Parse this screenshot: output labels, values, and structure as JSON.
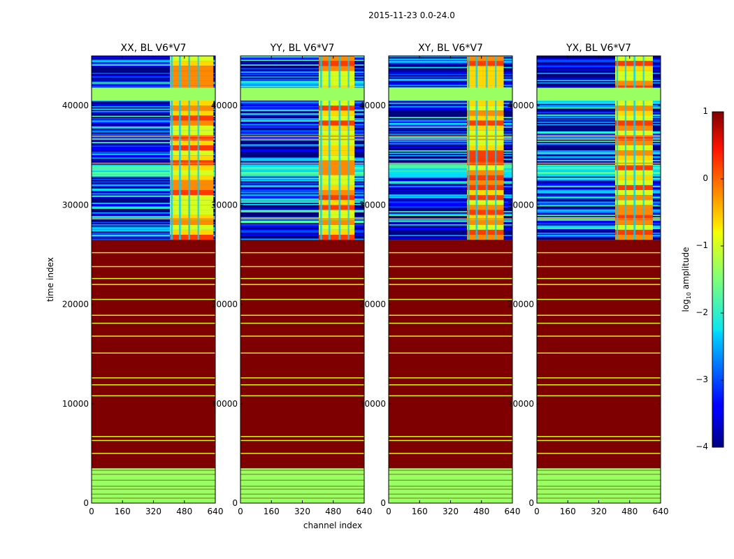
{
  "chart_data": {
    "type": "heatmap",
    "suptitle": "2015-11-23 0.0-24.0",
    "xlabel": "channel index",
    "ylabel": "time index",
    "xlim": [
      0,
      640
    ],
    "ylim": [
      0,
      45000
    ],
    "xticks": [
      "0",
      "160",
      "320",
      "480",
      "640"
    ],
    "yticks": [
      "0",
      "10000",
      "20000",
      "30000",
      "40000"
    ],
    "xtick_values": [
      0,
      160,
      320,
      480,
      640
    ],
    "ytick_values": [
      0,
      10000,
      20000,
      30000,
      40000
    ],
    "colormap": "jet",
    "panels": [
      {
        "title": "XX, BL V6*V7",
        "rfi_channel_ranges": [
          [
            405,
            630
          ]
        ],
        "rfi_channel_stripes": [
          [
            410,
            420
          ],
          [
            452,
            462
          ],
          [
            500,
            510
          ],
          [
            548,
            556
          ]
        ],
        "saturated_time_range": [
          3500,
          26500
        ],
        "flagged_block_time_range": [
          40500,
          41800
        ],
        "data_time_range": [
          26500,
          45000
        ]
      },
      {
        "title": "YY, BL V6*V7",
        "rfi_channel_ranges": [
          [
            405,
            590
          ]
        ],
        "rfi_channel_stripes": [
          [
            412,
            422
          ],
          [
            455,
            465
          ],
          [
            508,
            518
          ],
          [
            555,
            563
          ]
        ],
        "saturated_time_range": [
          3500,
          26500
        ],
        "flagged_block_time_range": [
          40500,
          41800
        ],
        "data_time_range": [
          26500,
          45000
        ]
      },
      {
        "title": "XY, BL V6*V7",
        "rfi_channel_ranges": [
          [
            405,
            595
          ]
        ],
        "rfi_channel_stripes": [
          [
            408,
            418
          ],
          [
            450,
            460
          ],
          [
            502,
            512
          ],
          [
            550,
            558
          ]
        ],
        "saturated_time_range": [
          3500,
          26500
        ],
        "flagged_block_time_range": [
          40500,
          41800
        ],
        "data_time_range": [
          26500,
          45000
        ]
      },
      {
        "title": "YX, BL V6*V7",
        "rfi_channel_ranges": [
          [
            405,
            600
          ]
        ],
        "rfi_channel_stripes": [
          [
            412,
            420
          ],
          [
            455,
            463
          ],
          [
            500,
            510
          ],
          [
            548,
            556
          ]
        ],
        "saturated_time_range": [
          3500,
          26500
        ],
        "flagged_block_time_range": [
          40500,
          41800
        ],
        "data_time_range": [
          26500,
          45000
        ]
      }
    ],
    "colorbar": {
      "label": "log10 amplitude",
      "label_prefix": "log",
      "label_sub": "10",
      "label_suffix": " amplitude",
      "range": [
        -4,
        1
      ],
      "ticks": [
        "1",
        "0",
        "−1",
        "−2",
        "−3",
        "−4"
      ],
      "tick_values": [
        1,
        0,
        -1,
        -2,
        -3,
        -4
      ]
    },
    "saturated_color": "#7f0000",
    "flagged_color": "#9aff63",
    "stripe_color": "#e6ff1a"
  }
}
